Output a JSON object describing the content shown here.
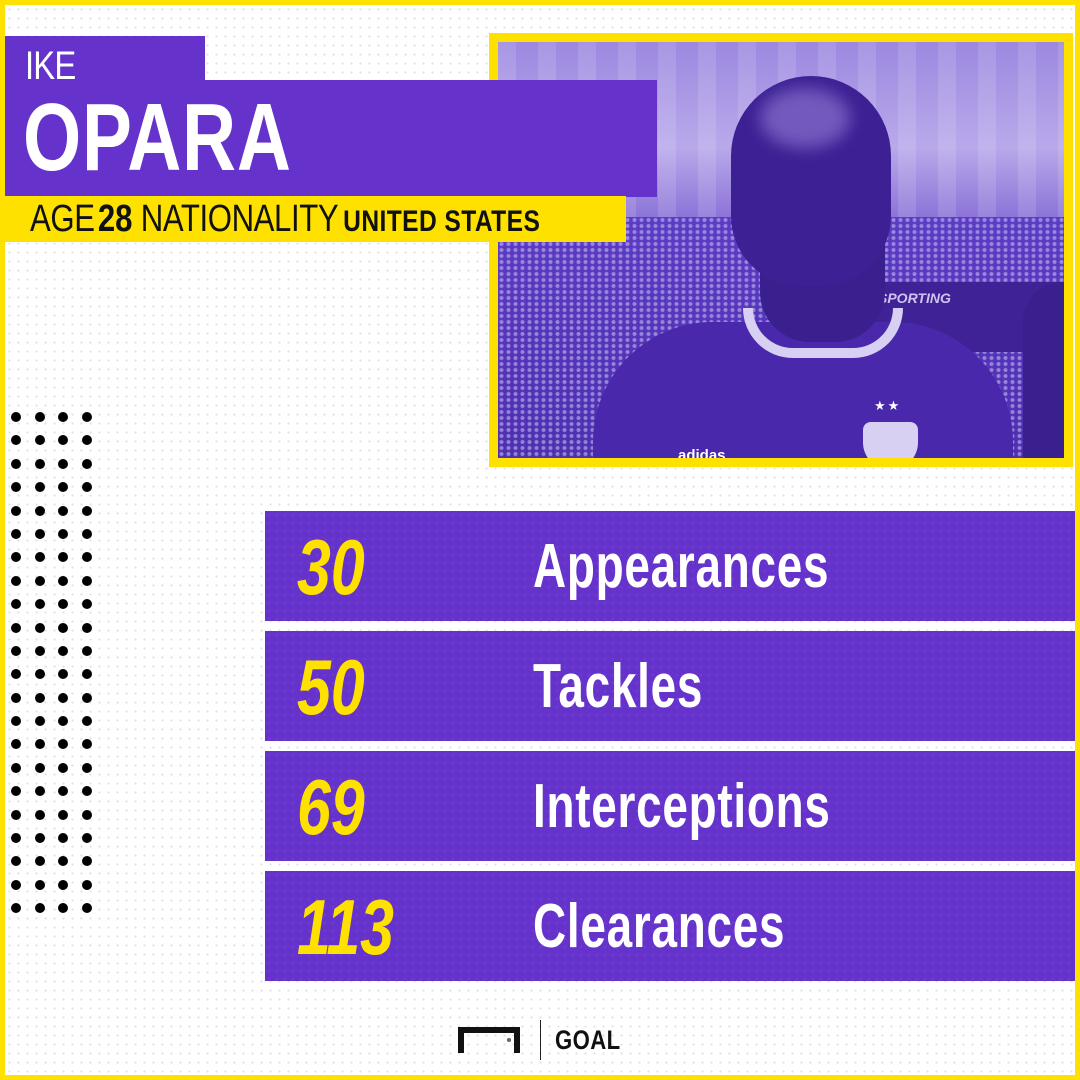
{
  "player": {
    "first_name": "IKE",
    "last_name": "OPARA",
    "age_label": "AGE",
    "age": "28",
    "nationality_label": "NATIONALITY",
    "nationality": "UNITED STATES"
  },
  "photo": {
    "banner_text": "SPORTING",
    "shirt_brand": "adidas",
    "crest_stars": "★★"
  },
  "stats": [
    {
      "value": "30",
      "label": "Appearances"
    },
    {
      "value": "50",
      "label": "Tackles"
    },
    {
      "value": "69",
      "label": "Interceptions"
    },
    {
      "value": "113",
      "label": "Clearances"
    }
  ],
  "footer": {
    "brand": "GOAL",
    "logo_icon": "goal-frame-icon"
  },
  "colors": {
    "purple": "#6533CC",
    "yellow": "#FFE100",
    "white": "#FFFFFF",
    "black": "#111111"
  }
}
